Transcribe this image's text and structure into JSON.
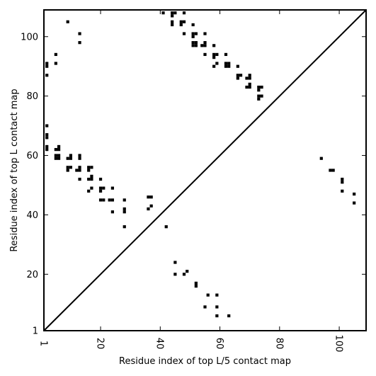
{
  "chart_data": {
    "type": "scatter",
    "title": "",
    "xlabel": "Residue index of top L/5 contact map",
    "ylabel": "Residue index of top L contact map",
    "xlim": [
      1,
      109
    ],
    "ylim": [
      1,
      109
    ],
    "x_ticks": [
      {
        "value": 1,
        "label": "1"
      },
      {
        "value": 20,
        "label": "20"
      },
      {
        "value": 40,
        "label": "40"
      },
      {
        "value": 60,
        "label": "60"
      },
      {
        "value": 80,
        "label": "80"
      },
      {
        "value": 100,
        "label": "100"
      }
    ],
    "y_ticks": [
      {
        "value": 1,
        "label": "1"
      },
      {
        "value": 20,
        "label": "20"
      },
      {
        "value": 40,
        "label": "40"
      },
      {
        "value": 60,
        "label": "60"
      },
      {
        "value": 80,
        "label": "80"
      },
      {
        "value": 100,
        "label": "100"
      }
    ],
    "diagonal": true,
    "grid": false,
    "marker_color": "#000000",
    "series": [
      {
        "values": [
          [
            9,
            105
          ],
          [
            13,
            101
          ],
          [
            13,
            98
          ],
          [
            5,
            94
          ],
          [
            5,
            91
          ],
          [
            2,
            91
          ],
          [
            2,
            90
          ],
          [
            2,
            87
          ],
          [
            2,
            70
          ],
          [
            2,
            67
          ],
          [
            2,
            66
          ],
          [
            2,
            63
          ],
          [
            2,
            62
          ],
          [
            5,
            62
          ],
          [
            6,
            63
          ],
          [
            6,
            62
          ],
          [
            5,
            60
          ],
          [
            6,
            60
          ],
          [
            5,
            59
          ],
          [
            6,
            59
          ],
          [
            9,
            59
          ],
          [
            10,
            60
          ],
          [
            10,
            59
          ],
          [
            13,
            60
          ],
          [
            13,
            59
          ],
          [
            9,
            56
          ],
          [
            10,
            56
          ],
          [
            9,
            55
          ],
          [
            13,
            56
          ],
          [
            13,
            55
          ],
          [
            12,
            55
          ],
          [
            16,
            56
          ],
          [
            17,
            56
          ],
          [
            16,
            55
          ],
          [
            13,
            52
          ],
          [
            16,
            52
          ],
          [
            17,
            52
          ],
          [
            17,
            53
          ],
          [
            16,
            48
          ],
          [
            17,
            49
          ],
          [
            20,
            52
          ],
          [
            20,
            49
          ],
          [
            21,
            49
          ],
          [
            20,
            48
          ],
          [
            24,
            49
          ],
          [
            20,
            45
          ],
          [
            21,
            45
          ],
          [
            23,
            45
          ],
          [
            24,
            45
          ],
          [
            24,
            41
          ],
          [
            28,
            45
          ],
          [
            28,
            42
          ],
          [
            28,
            41
          ],
          [
            28,
            36
          ],
          [
            36,
            46
          ],
          [
            37,
            46
          ],
          [
            36,
            42
          ],
          [
            37,
            43
          ],
          [
            42,
            36
          ],
          [
            41,
            108
          ],
          [
            44,
            108
          ],
          [
            45,
            108
          ],
          [
            44,
            107
          ],
          [
            44,
            105
          ],
          [
            44,
            104
          ],
          [
            47,
            105
          ],
          [
            48,
            105
          ],
          [
            47,
            104
          ],
          [
            48,
            108
          ],
          [
            48,
            101
          ],
          [
            51,
            104
          ],
          [
            51,
            101
          ],
          [
            52,
            101
          ],
          [
            51,
            100
          ],
          [
            51,
            98
          ],
          [
            52,
            98
          ],
          [
            51,
            97
          ],
          [
            52,
            97
          ],
          [
            54,
            97
          ],
          [
            55,
            98
          ],
          [
            55,
            97
          ],
          [
            55,
            101
          ],
          [
            55,
            94
          ],
          [
            58,
            97
          ],
          [
            58,
            94
          ],
          [
            59,
            94
          ],
          [
            58,
            93
          ],
          [
            62,
            94
          ],
          [
            62,
            91
          ],
          [
            63,
            91
          ],
          [
            62,
            90
          ],
          [
            63,
            90
          ],
          [
            58,
            90
          ],
          [
            59,
            91
          ],
          [
            66,
            90
          ],
          [
            66,
            87
          ],
          [
            67,
            87
          ],
          [
            66,
            86
          ],
          [
            69,
            86
          ],
          [
            70,
            86
          ],
          [
            70,
            87
          ],
          [
            69,
            83
          ],
          [
            70,
            83
          ],
          [
            70,
            84
          ],
          [
            73,
            83
          ],
          [
            74,
            83
          ],
          [
            73,
            82
          ],
          [
            73,
            80
          ],
          [
            74,
            80
          ],
          [
            73,
            79
          ],
          [
            94,
            59
          ],
          [
            97,
            55
          ],
          [
            98,
            55
          ],
          [
            101,
            52
          ],
          [
            101,
            51
          ],
          [
            101,
            48
          ],
          [
            105,
            47
          ],
          [
            105,
            44
          ],
          [
            45,
            24
          ],
          [
            45,
            20
          ],
          [
            48,
            20
          ],
          [
            49,
            21
          ],
          [
            52,
            17
          ],
          [
            52,
            16
          ],
          [
            56,
            13
          ],
          [
            59,
            13
          ],
          [
            55,
            9
          ],
          [
            59,
            9
          ],
          [
            59,
            6
          ],
          [
            63,
            6
          ]
        ]
      }
    ]
  }
}
